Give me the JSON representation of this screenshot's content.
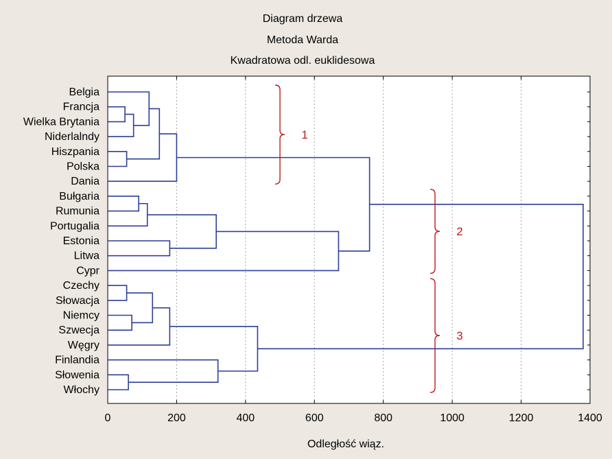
{
  "chart_data": {
    "type": "dendrogram",
    "title_lines": [
      "Diagram drzewa",
      "Metoda Warda",
      "Kwadratowa odl. euklidesowa"
    ],
    "xlabel": "Odległość wiąz.",
    "xlim": [
      0,
      1400
    ],
    "xticks": [
      0,
      200,
      400,
      600,
      800,
      1000,
      1200,
      1400
    ],
    "leaves": [
      "Belgia",
      "Francja",
      "Wielka Brytania",
      "Niderlalndy",
      "Hiszpania",
      "Polska",
      "Dania",
      "Bułgaria",
      "Rumunia",
      "Portugalia",
      "Estonia",
      "Litwa",
      "Cypr",
      "Czechy",
      "Słowacja",
      "Niemcy",
      "Szwecja",
      "Węgry",
      "Finlandia",
      "Słowenia",
      "Włochy"
    ],
    "merges": [
      {
        "a": "L1",
        "b": "L2",
        "height": 50
      },
      {
        "a": "M0",
        "b": "L3",
        "height": 75
      },
      {
        "a": "L0",
        "b": "M1",
        "height": 120
      },
      {
        "a": "L4",
        "b": "L5",
        "height": 55
      },
      {
        "a": "M2",
        "b": "M3",
        "height": 150
      },
      {
        "a": "M4",
        "b": "L6",
        "height": 200
      },
      {
        "a": "L7",
        "b": "L8",
        "height": 90
      },
      {
        "a": "M6",
        "b": "L9",
        "height": 115
      },
      {
        "a": "L10",
        "b": "L11",
        "height": 180
      },
      {
        "a": "M7",
        "b": "M8",
        "height": 315
      },
      {
        "a": "M9",
        "b": "L12",
        "height": 670
      },
      {
        "a": "M5",
        "b": "M10",
        "height": 760
      },
      {
        "a": "L13",
        "b": "L14",
        "height": 55
      },
      {
        "a": "L15",
        "b": "L16",
        "height": 70
      },
      {
        "a": "M12",
        "b": "M13",
        "height": 130
      },
      {
        "a": "M14",
        "b": "L17",
        "height": 180
      },
      {
        "a": "L19",
        "b": "L20",
        "height": 60
      },
      {
        "a": "L18",
        "b": "M16",
        "height": 320
      },
      {
        "a": "M15",
        "b": "M17",
        "height": 435
      },
      {
        "a": "M11",
        "b": "M18",
        "height": 1380
      }
    ],
    "clusters": [
      {
        "label": "1",
        "from_leaf": 0,
        "to_leaf": 6,
        "x": 500
      },
      {
        "label": "2",
        "from_leaf": 7,
        "to_leaf": 12,
        "x": 950
      },
      {
        "label": "3",
        "from_leaf": 13,
        "to_leaf": 20,
        "x": 950
      }
    ]
  }
}
